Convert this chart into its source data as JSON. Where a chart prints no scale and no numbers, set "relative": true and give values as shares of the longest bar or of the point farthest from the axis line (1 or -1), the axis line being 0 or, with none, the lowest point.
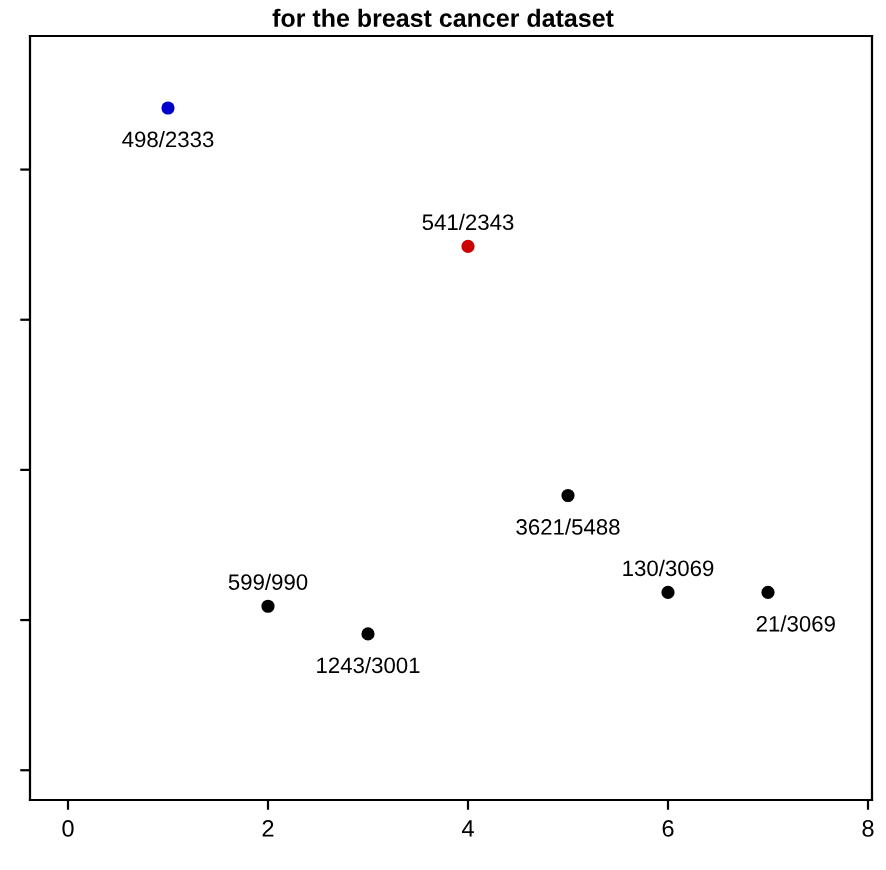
{
  "chart_data": {
    "type": "scatter",
    "title": "for the breast cancer dataset",
    "relative": true,
    "x": [
      1,
      2,
      3,
      4,
      5,
      6,
      7
    ],
    "values": [
      1,
      0.28,
      0.24,
      0.8,
      0.44,
      0.3,
      0.3
    ],
    "colors": [
      "#0000cc",
      "#000000",
      "#000000",
      "#cc0000",
      "#000000",
      "#000000",
      "#000000"
    ],
    "marker": "circle",
    "grid": false,
    "tick_labels": "x",
    "xlim": [
      -0.38,
      8.04
    ],
    "xticks": [
      0,
      2,
      4,
      6,
      8
    ],
    "annotations": [
      {
        "text": "498/2333",
        "x": 1,
        "y": 1
      },
      {
        "text": "599/990",
        "x": 2,
        "y": 0.28
      },
      {
        "text": "1243/3001",
        "x": 3,
        "y": 0.24
      },
      {
        "text": "541/2343",
        "x": 4,
        "y": 0.8
      },
      {
        "text": "3621/5488",
        "x": 5,
        "y": 0.44
      },
      {
        "text": "130/3069",
        "x": 6,
        "y": 0.3
      },
      {
        "text": "21/3069",
        "x": 7,
        "y": 0.3
      }
    ]
  }
}
